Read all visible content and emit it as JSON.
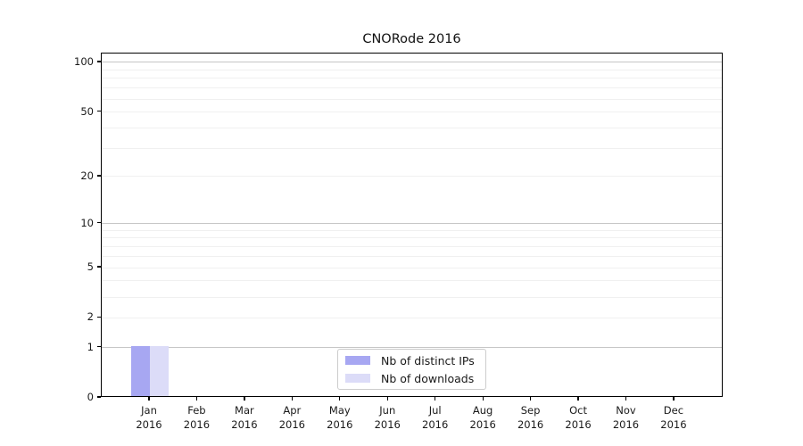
{
  "title": "CNORode 2016",
  "chart_data": {
    "type": "bar",
    "title": "CNORode 2016",
    "scale": "log1p",
    "ylim": [
      0,
      113
    ],
    "yticks": [
      0,
      1,
      2,
      5,
      10,
      20,
      50,
      100
    ],
    "grid": {
      "major": [
        1,
        10,
        100
      ],
      "minor": [
        2,
        3,
        4,
        5,
        6,
        7,
        8,
        9,
        20,
        30,
        40,
        50,
        60,
        70,
        80,
        90
      ],
      "major_color": "#c6c6c6",
      "minor_color": "#f0f0f0"
    },
    "categories": [
      {
        "month": "Jan",
        "year": "2016"
      },
      {
        "month": "Feb",
        "year": "2016"
      },
      {
        "month": "Mar",
        "year": "2016"
      },
      {
        "month": "Apr",
        "year": "2016"
      },
      {
        "month": "May",
        "year": "2016"
      },
      {
        "month": "Jun",
        "year": "2016"
      },
      {
        "month": "Jul",
        "year": "2016"
      },
      {
        "month": "Aug",
        "year": "2016"
      },
      {
        "month": "Sep",
        "year": "2016"
      },
      {
        "month": "Oct",
        "year": "2016"
      },
      {
        "month": "Nov",
        "year": "2016"
      },
      {
        "month": "Dec",
        "year": "2016"
      }
    ],
    "series": [
      {
        "name": "Nb of distinct IPs",
        "color": "#a7a7f2",
        "values": [
          1,
          0,
          0,
          0,
          0,
          0,
          0,
          0,
          0,
          0,
          0,
          0
        ]
      },
      {
        "name": "Nb of downloads",
        "color": "#dcdcf8",
        "values": [
          1,
          0,
          0,
          0,
          0,
          0,
          0,
          0,
          0,
          0,
          0,
          0
        ]
      }
    ],
    "legend": {
      "position": "bottom-center",
      "entries": [
        "Nb of distinct IPs",
        "Nb of downloads"
      ]
    }
  }
}
